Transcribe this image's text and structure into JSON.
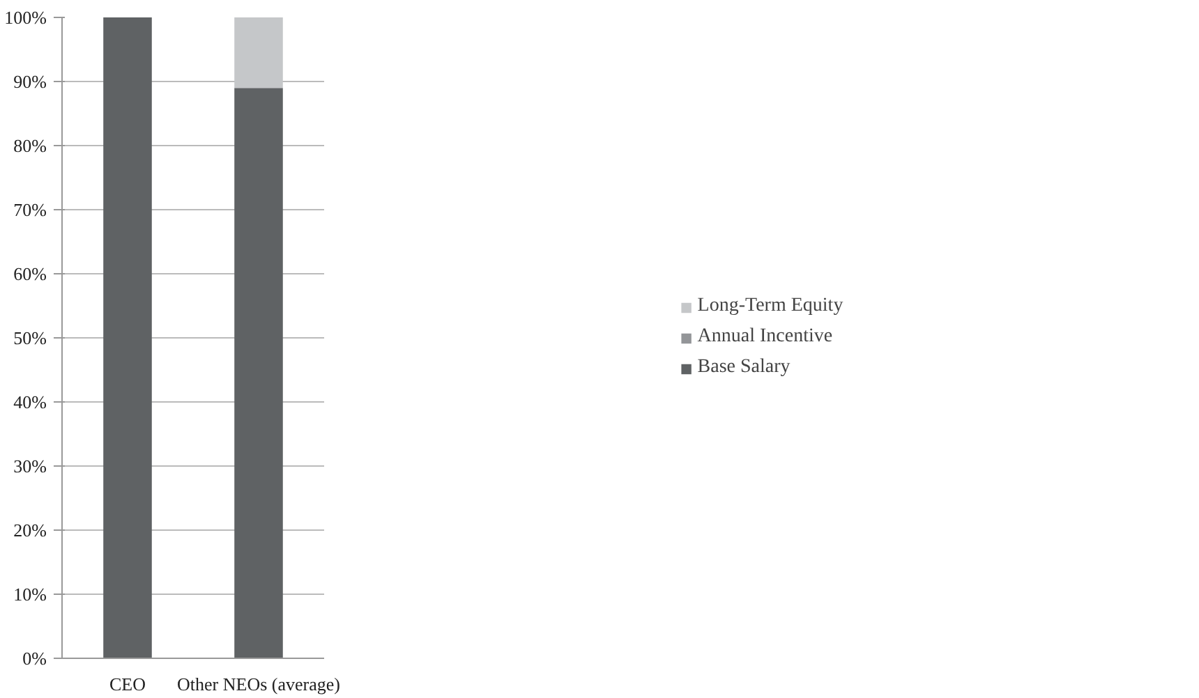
{
  "chart_data": {
    "type": "bar",
    "stacked": true,
    "categories": [
      "CEO",
      "Other NEOs (average)"
    ],
    "series": [
      {
        "name": "Base Salary",
        "color": "#5f6264",
        "values": [
          100,
          89
        ]
      },
      {
        "name": "Annual Incentive",
        "color": "#939598",
        "values": [
          0,
          0
        ]
      },
      {
        "name": "Long-Term Equity",
        "color": "#c5c7c9",
        "values": [
          0,
          11
        ]
      }
    ],
    "ylim": [
      0,
      100
    ],
    "yticks": [
      {
        "value": 0,
        "label": "0%"
      },
      {
        "value": 10,
        "label": "10%"
      },
      {
        "value": 20,
        "label": "20%"
      },
      {
        "value": 30,
        "label": "30%"
      },
      {
        "value": 40,
        "label": "40%"
      },
      {
        "value": 50,
        "label": "50%"
      },
      {
        "value": 60,
        "label": "60%"
      },
      {
        "value": 70,
        "label": "70%"
      },
      {
        "value": 80,
        "label": "80%"
      },
      {
        "value": 90,
        "label": "90%"
      },
      {
        "value": 100,
        "label": "100%"
      }
    ],
    "grid": "y",
    "legend": "right"
  }
}
